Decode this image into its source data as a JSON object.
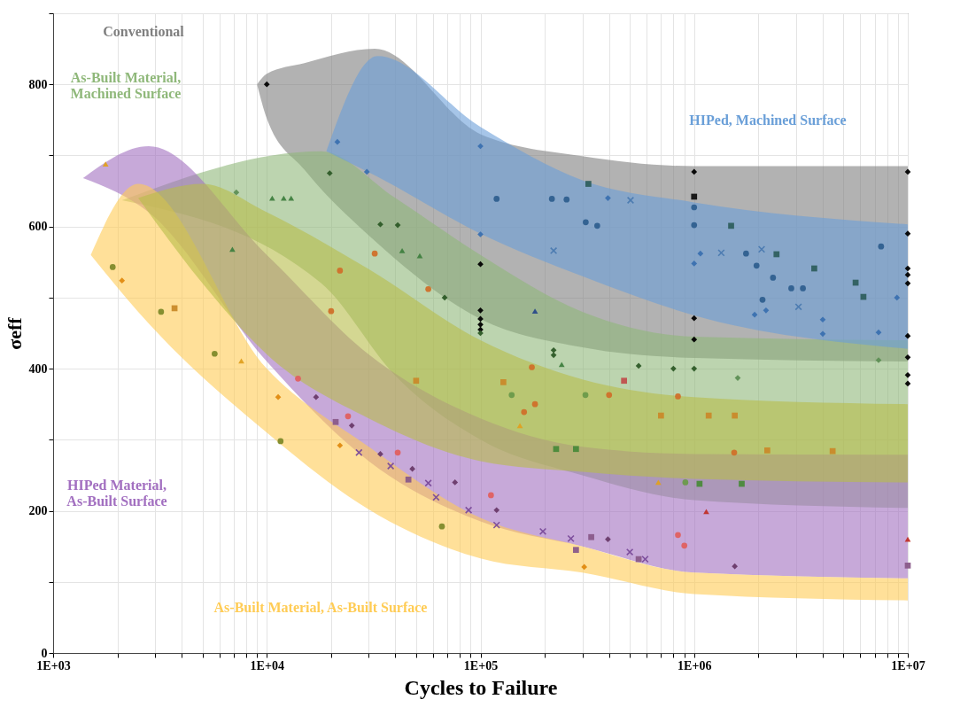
{
  "chart_data": {
    "type": "scatter",
    "xlabel": "Cycles to Failure",
    "ylabel": "σeff",
    "log": "x",
    "grid": true,
    "xlim": [
      1000,
      10000000
    ],
    "ylim": [
      0,
      900
    ],
    "xticks": [
      {
        "value": 1000,
        "label": "1E+03"
      },
      {
        "value": 2000,
        "label": null
      },
      {
        "value": 3000,
        "label": null
      },
      {
        "value": 4000,
        "label": null
      },
      {
        "value": 5000,
        "label": null
      },
      {
        "value": 6000,
        "label": null
      },
      {
        "value": 7000,
        "label": null
      },
      {
        "value": 8000,
        "label": null
      },
      {
        "value": 9000,
        "label": null
      },
      {
        "value": 10000,
        "label": "1E+04"
      },
      {
        "value": 20000,
        "label": null
      },
      {
        "value": 30000,
        "label": null
      },
      {
        "value": 40000,
        "label": null
      },
      {
        "value": 50000,
        "label": null
      },
      {
        "value": 60000,
        "label": null
      },
      {
        "value": 70000,
        "label": null
      },
      {
        "value": 80000,
        "label": null
      },
      {
        "value": 90000,
        "label": null
      },
      {
        "value": 100000,
        "label": "1E+05"
      },
      {
        "value": 200000,
        "label": null
      },
      {
        "value": 300000,
        "label": null
      },
      {
        "value": 400000,
        "label": null
      },
      {
        "value": 500000,
        "label": null
      },
      {
        "value": 600000,
        "label": null
      },
      {
        "value": 700000,
        "label": null
      },
      {
        "value": 800000,
        "label": null
      },
      {
        "value": 900000,
        "label": null
      },
      {
        "value": 1000000,
        "label": "1E+06"
      },
      {
        "value": 2000000,
        "label": null
      },
      {
        "value": 3000000,
        "label": null
      },
      {
        "value": 4000000,
        "label": null
      },
      {
        "value": 5000000,
        "label": null
      },
      {
        "value": 6000000,
        "label": null
      },
      {
        "value": 7000000,
        "label": null
      },
      {
        "value": 8000000,
        "label": null
      },
      {
        "value": 9000000,
        "label": null
      },
      {
        "value": 10000000,
        "label": "1E+07"
      }
    ],
    "yticks": [
      0,
      {
        "value": 100,
        "label": null
      },
      200,
      {
        "value": 300,
        "label": null
      },
      400,
      {
        "value": 500,
        "label": null
      },
      600,
      {
        "value": 700,
        "label": null
      },
      800,
      {
        "value": 900,
        "label": null
      }
    ],
    "annotations": [
      "Conventional",
      "As-Built Material,\nMachined Surface",
      "HIPed, Machined Surface",
      "HIPed Material,\nAs-Built Surface",
      "As-Built Material, As-Built Surface"
    ],
    "series": [
      {
        "type": "line",
        "color": "#7f7f7f",
        "x": [
          9000,
          10000,
          15000,
          32000,
          100000,
          300000,
          1000000,
          10000000
        ],
        "values": [
          null,
          null,
          null,
          null,
          null,
          null,
          null,
          null
        ],
        "lower": [
          800,
          752,
          680,
          580,
          470,
          430,
          415,
          410
        ],
        "upper": [
          800,
          815,
          830,
          850,
          730,
          699,
          685,
          685
        ]
      },
      {
        "type": "line",
        "color": "#8fb87a",
        "x": [
          2100,
          18000,
          40000,
          100000,
          300000,
          1000000,
          10000000
        ],
        "values": [
          null,
          null,
          null,
          null,
          null,
          null,
          null
        ],
        "lower": [
          637,
          520,
          390,
          300,
          250,
          215,
          204
        ],
        "upper": [
          637,
          706,
          640,
          560,
          480,
          445,
          440
        ]
      },
      {
        "type": "line",
        "color": "#6a9fd8",
        "x": [
          19000,
          33000,
          100000,
          300000,
          1000000,
          10000000
        ],
        "values": [
          null,
          null,
          null,
          null,
          null,
          null
        ],
        "lower": [
          706,
          670,
          590,
          530,
          475,
          428
        ],
        "upper": [
          706,
          840,
          740,
          665,
          634,
          603
        ]
      },
      {
        "type": "line",
        "color": "#a26fc0",
        "x": [
          1380,
          2800,
          10000,
          30000,
          100000,
          300000,
          1000000,
          10000000
        ],
        "values": [
          null,
          null,
          null,
          null,
          null,
          null,
          null,
          null
        ],
        "lower": [
          668,
          620,
          410,
          270,
          185,
          150,
          113,
          105
        ],
        "upper": [
          668,
          713,
          560,
          420,
          330,
          290,
          280,
          279
        ]
      },
      {
        "type": "line",
        "color": "#ffcc55",
        "x": [
          1500,
          2500,
          10000,
          30000,
          100000,
          300000,
          1000000,
          10000000
        ],
        "values": [
          null,
          null,
          null,
          null,
          null,
          null,
          null,
          null
        ],
        "lower": [
          560,
          480,
          310,
          202,
          133,
          113,
          83,
          74
        ],
        "upper": [
          560,
          660,
          400,
          290,
          190,
          150,
          113,
          105
        ]
      },
      {
        "type": "line",
        "color": "#b8bd4a",
        "x": [
          2500,
          5000,
          10000,
          30000,
          100000,
          300000,
          1000000,
          10000000
        ],
        "values": [
          null,
          null,
          null,
          null,
          null,
          null,
          null,
          null
        ],
        "lower": [
          640,
          520,
          420,
          330,
          270,
          255,
          245,
          240
        ],
        "upper": [
          640,
          660,
          620,
          540,
          440,
          385,
          360,
          350
        ]
      },
      {
        "marker": "diamond",
        "color": "#000000",
        "x": [
          10000,
          100000,
          100000,
          100000,
          100000,
          100000,
          1000000,
          1000000,
          1000000,
          10000000,
          10000000,
          10000000,
          10000000,
          10000000,
          10000000,
          10000000,
          10000000,
          10000000
        ],
        "values": [
          800,
          547,
          482,
          470,
          462,
          455,
          677,
          471,
          441,
          677,
          590,
          541,
          532,
          520,
          446,
          416,
          391,
          379
        ]
      },
      {
        "marker": "diamond",
        "color": "#2d5a27",
        "x": [
          19700,
          34000,
          41000,
          68000,
          100000,
          220000,
          220000,
          550000,
          800000,
          1000000
        ],
        "values": [
          675,
          603,
          602,
          500,
          450,
          426,
          419,
          404,
          400,
          400
        ]
      },
      {
        "marker": "diamond",
        "color": "#5e8f55",
        "x": [
          7300000,
          1600000,
          7200
        ],
        "values": [
          412,
          387,
          648
        ]
      },
      {
        "marker": "circle",
        "color": "#6a9a4a",
        "x": [
          140000,
          310000,
          910000
        ],
        "values": [
          363,
          363,
          240
        ]
      },
      {
        "marker": "triangle",
        "color": "#3f7f3f",
        "x": [
          10600,
          12000,
          13000,
          43000,
          52000,
          6900,
          240000
        ],
        "values": [
          640,
          640,
          640,
          566,
          559,
          568,
          406
        ]
      },
      {
        "marker": "circle",
        "color": "#2f5f8f",
        "x": [
          119000,
          216000,
          253000,
          1000000,
          2340000,
          2850000,
          3230000,
          2090000,
          1960000,
          311000,
          352000,
          1000000,
          7500000,
          1750000
        ],
        "values": [
          639,
          639,
          638,
          627,
          528,
          513,
          513,
          497,
          545,
          606,
          601,
          602,
          572,
          562
        ]
      },
      {
        "marker": "diamond",
        "color": "#3a70b0",
        "x": [
          21400,
          29400,
          100000,
          100000,
          395000,
          1000000,
          1070000,
          1920000,
          2170000,
          4000000,
          4000000,
          7300000,
          8900000
        ],
        "values": [
          719,
          677,
          713,
          589,
          640,
          548,
          562,
          476,
          482,
          469,
          449,
          451,
          500
        ]
      },
      {
        "marker": "cross",
        "color": "#4a7ab0",
        "x": [
          220000,
          504000,
          1340000,
          2070000,
          3080000
        ],
        "values": [
          566,
          637,
          563,
          568,
          487
        ]
      },
      {
        "marker": "square",
        "color": "#2f5f5f",
        "x": [
          320000,
          1490000,
          2430000,
          3650000,
          5700000,
          6200000
        ],
        "values": [
          660,
          601,
          561,
          541,
          521,
          501
        ]
      },
      {
        "marker": "square",
        "color": "#111111",
        "x": [
          1000000
        ],
        "values": [
          642
        ]
      },
      {
        "marker": "triangle",
        "color": "#2a4a8a",
        "x": [
          180000
        ],
        "values": [
          481
        ]
      },
      {
        "marker": "square",
        "color": "#c98a2a",
        "x": [
          128000,
          700000,
          1170000,
          1550000,
          2200000,
          4450000,
          3700,
          50000
        ],
        "values": [
          381,
          334,
          334,
          334,
          285,
          284,
          485,
          383
        ]
      },
      {
        "marker": "square",
        "color": "#c0504d",
        "x": [
          470000
        ],
        "values": [
          383
        ]
      },
      {
        "marker": "circle",
        "color": "#d0702a",
        "x": [
          174000,
          160000,
          180000,
          400000,
          840000,
          1540000,
          32000,
          22000,
          57000,
          20000
        ],
        "values": [
          402,
          339,
          350,
          363,
          361,
          282,
          562,
          538,
          512,
          481
        ]
      },
      {
        "marker": "circle",
        "color": "#7f8a2a",
        "x": [
          5700,
          11600,
          66000,
          1900,
          3200
        ],
        "values": [
          421,
          298,
          178,
          543,
          480
        ]
      },
      {
        "marker": "triangle",
        "color": "#e0a020",
        "x": [
          7600,
          1760,
          153000,
          680000
        ],
        "values": [
          411,
          688,
          320,
          240
        ]
      },
      {
        "marker": "triangle",
        "color": "#c0302a",
        "x": [
          1140000,
          10000000
        ],
        "values": [
          199,
          160
        ]
      },
      {
        "marker": "cross",
        "color": "#7a4a9a",
        "x": [
          27000,
          38000,
          57000,
          62000,
          88000,
          119000,
          196000,
          265000,
          500000,
          590000
        ],
        "values": [
          282,
          263,
          239,
          219,
          201,
          180,
          171,
          161,
          142,
          132
        ]
      },
      {
        "marker": "square",
        "color": "#8a5a8a",
        "x": [
          21000,
          46000,
          330000,
          280000,
          550000,
          10000000
        ],
        "values": [
          325,
          244,
          163,
          145,
          132,
          123
        ]
      },
      {
        "marker": "diamond",
        "color": "#6a3a6a",
        "x": [
          17000,
          25000,
          34000,
          48000,
          76000,
          119000,
          395000,
          1550000
        ],
        "values": [
          360,
          320,
          280,
          259,
          240,
          201,
          160,
          122
        ]
      },
      {
        "marker": "circle",
        "color": "#e06060",
        "x": [
          14000,
          24000,
          41000,
          112000,
          840000,
          900000
        ],
        "values": [
          386,
          333,
          282,
          222,
          166,
          151
        ]
      },
      {
        "marker": "diamond",
        "color": "#e08a10",
        "x": [
          11300,
          22000,
          306000,
          2100
        ],
        "values": [
          360,
          292,
          121,
          524
        ]
      },
      {
        "marker": "square",
        "color": "#4a8a3a",
        "x": [
          226000,
          280000,
          1060000,
          1670000
        ],
        "values": [
          287,
          287,
          238,
          238
        ]
      }
    ]
  }
}
